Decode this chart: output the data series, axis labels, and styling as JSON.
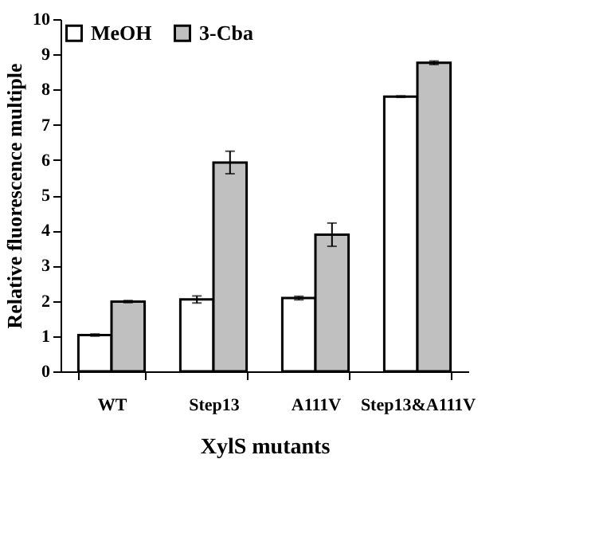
{
  "chart_data": {
    "type": "bar",
    "xlabel": "XylS mutants",
    "ylabel": "Relative fluorescence multiple",
    "categories": [
      "WT",
      "Step13",
      "A111V",
      "Step13&A111V"
    ],
    "series": [
      {
        "name": "MeOH",
        "color": "#ffffff",
        "values": [
          1.03,
          2.04,
          2.08,
          7.8
        ],
        "errors": [
          0.03,
          0.1,
          0.05,
          0.02
        ]
      },
      {
        "name": "3-Cba",
        "color": "#c0c0c0",
        "values": [
          1.98,
          5.93,
          3.88,
          8.76
        ],
        "errors": [
          0.03,
          0.32,
          0.33,
          0.05
        ]
      }
    ],
    "ylim": [
      0,
      10
    ],
    "yticks": [
      0,
      1,
      2,
      3,
      4,
      5,
      6,
      7,
      8,
      9,
      10
    ],
    "grid": false,
    "legend": "top left"
  }
}
